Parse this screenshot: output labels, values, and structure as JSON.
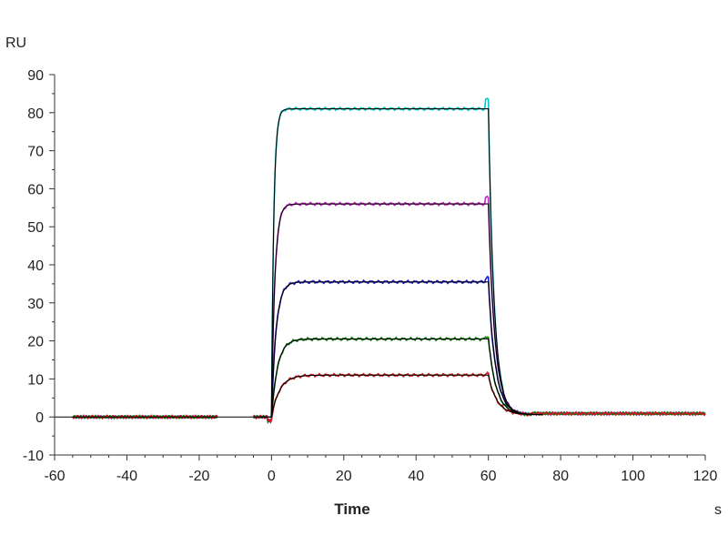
{
  "chart_data": {
    "type": "line",
    "title": "",
    "xlabel": "Time",
    "x_unit": "s",
    "ylabel": "RU",
    "xlim": [
      -60,
      120
    ],
    "ylim": [
      -10,
      90
    ],
    "x_ticks": [
      -60,
      -40,
      -20,
      0,
      20,
      40,
      60,
      80,
      100,
      120
    ],
    "y_ticks": [
      -10,
      0,
      10,
      20,
      30,
      40,
      50,
      60,
      70,
      80,
      90
    ],
    "grid": false,
    "legend": "none",
    "association_start": 0,
    "dissociation_start": 60,
    "series": [
      {
        "color": "#00c8c8",
        "plateau": 81,
        "kobs": 1.6,
        "kd": 0.62
      },
      {
        "color": "#cc22cc",
        "plateau": 56,
        "kobs": 1.1,
        "kd": 0.55
      },
      {
        "color": "#1a1ad0",
        "plateau": 35.5,
        "kobs": 0.8,
        "kd": 0.5
      },
      {
        "color": "#0a7a0a",
        "plateau": 20.5,
        "kobs": 0.6,
        "kd": 0.46
      },
      {
        "color": "#cc1a1a",
        "plateau": 11,
        "kobs": 0.45,
        "kd": 0.42
      }
    ],
    "fit_color": "#000000"
  }
}
